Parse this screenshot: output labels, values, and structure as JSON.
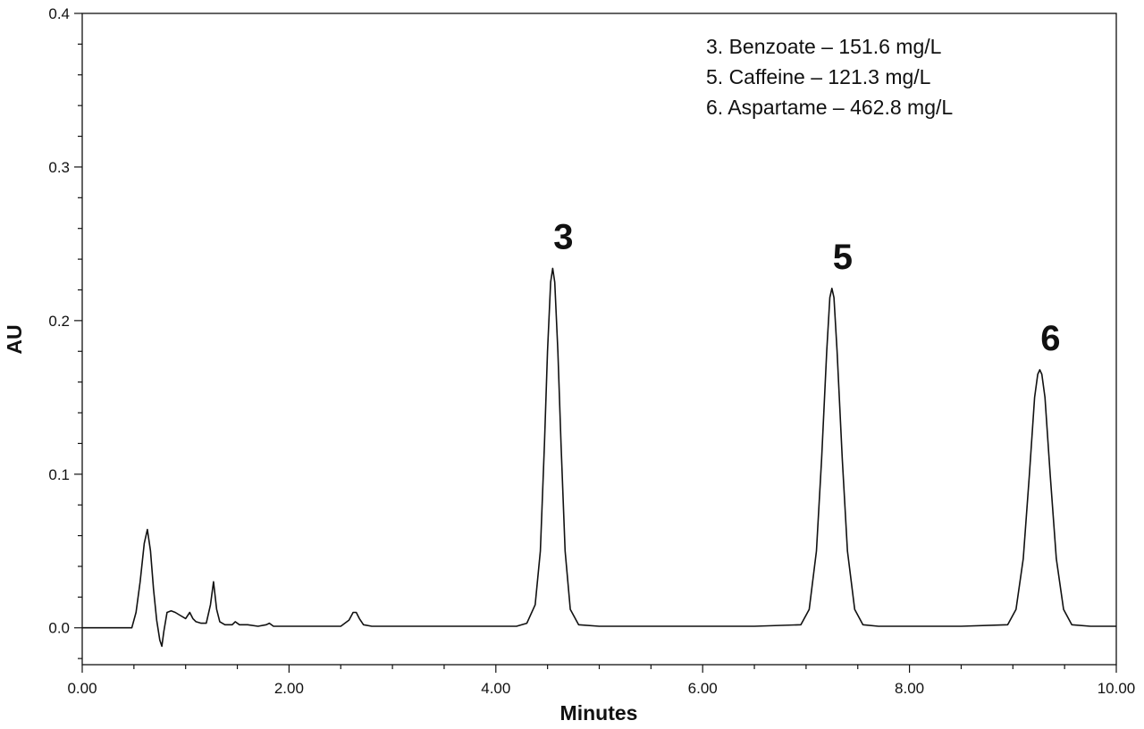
{
  "chart_data": {
    "type": "line",
    "title": "",
    "xlabel": "Minutes",
    "ylabel": "AU",
    "xlim": [
      0,
      10
    ],
    "ylim": [
      -0.024,
      0.4
    ],
    "x_ticks": [
      0,
      2,
      4,
      6,
      8,
      10
    ],
    "x_tick_labels": [
      "0.00",
      "2.00",
      "4.00",
      "6.00",
      "8.00",
      "10.00"
    ],
    "y_ticks": [
      0.0,
      0.1,
      0.2,
      0.3,
      0.4
    ],
    "y_tick_labels": [
      "0.0",
      "0.1",
      "0.2",
      "0.3",
      "0.4"
    ],
    "grid": false,
    "line_color": "#111111",
    "peaks": [
      {
        "label": "3",
        "x": 4.55,
        "y": 0.234
      },
      {
        "label": "5",
        "x": 7.25,
        "y": 0.221
      },
      {
        "label": "6",
        "x": 9.26,
        "y": 0.168
      }
    ],
    "legend": {
      "placement": "top-right",
      "entries": [
        "3. Benzoate –  151.6 mg/L",
        "5. Caffeine –  121.3 mg/L",
        "6. Aspartame –  462.8 mg/L"
      ]
    },
    "series": [
      {
        "x": [
          0,
          0.48,
          0.52,
          0.56,
          0.6,
          0.63,
          0.66,
          0.69,
          0.72,
          0.75,
          0.77,
          0.79,
          0.82,
          0.86,
          0.9,
          0.95,
          1.0,
          1.04,
          1.07,
          1.1,
          1.15,
          1.2,
          1.24,
          1.27,
          1.3,
          1.33,
          1.38,
          1.45,
          1.48,
          1.52,
          1.6,
          1.7,
          1.78,
          1.81,
          1.85,
          1.95,
          2.2,
          2.5,
          2.58,
          2.62,
          2.65,
          2.68,
          2.72,
          2.8,
          3.5,
          4.2,
          4.3,
          4.38,
          4.43,
          4.47,
          4.5,
          4.53,
          4.55,
          4.57,
          4.6,
          4.63,
          4.67,
          4.72,
          4.8,
          5.0,
          6.5,
          6.95,
          7.03,
          7.1,
          7.15,
          7.2,
          7.23,
          7.25,
          7.27,
          7.3,
          7.35,
          7.4,
          7.47,
          7.55,
          7.7,
          8.5,
          8.95,
          9.03,
          9.1,
          9.16,
          9.21,
          9.24,
          9.26,
          9.28,
          9.31,
          9.36,
          9.42,
          9.49,
          9.57,
          9.75,
          10.0
        ],
        "y": [
          0.0,
          0.0,
          0.01,
          0.03,
          0.055,
          0.064,
          0.05,
          0.025,
          0.005,
          -0.008,
          -0.012,
          -0.002,
          0.01,
          0.011,
          0.01,
          0.008,
          0.006,
          0.01,
          0.006,
          0.004,
          0.003,
          0.003,
          0.015,
          0.03,
          0.012,
          0.004,
          0.002,
          0.002,
          0.004,
          0.002,
          0.002,
          0.001,
          0.002,
          0.003,
          0.001,
          0.001,
          0.001,
          0.001,
          0.005,
          0.01,
          0.01,
          0.006,
          0.002,
          0.001,
          0.001,
          0.001,
          0.003,
          0.015,
          0.05,
          0.12,
          0.18,
          0.225,
          0.234,
          0.225,
          0.18,
          0.12,
          0.05,
          0.012,
          0.002,
          0.001,
          0.001,
          0.002,
          0.012,
          0.05,
          0.11,
          0.18,
          0.215,
          0.221,
          0.215,
          0.18,
          0.11,
          0.05,
          0.012,
          0.002,
          0.001,
          0.001,
          0.002,
          0.012,
          0.045,
          0.1,
          0.15,
          0.165,
          0.168,
          0.165,
          0.15,
          0.1,
          0.045,
          0.012,
          0.002,
          0.001,
          0.001
        ]
      }
    ]
  }
}
